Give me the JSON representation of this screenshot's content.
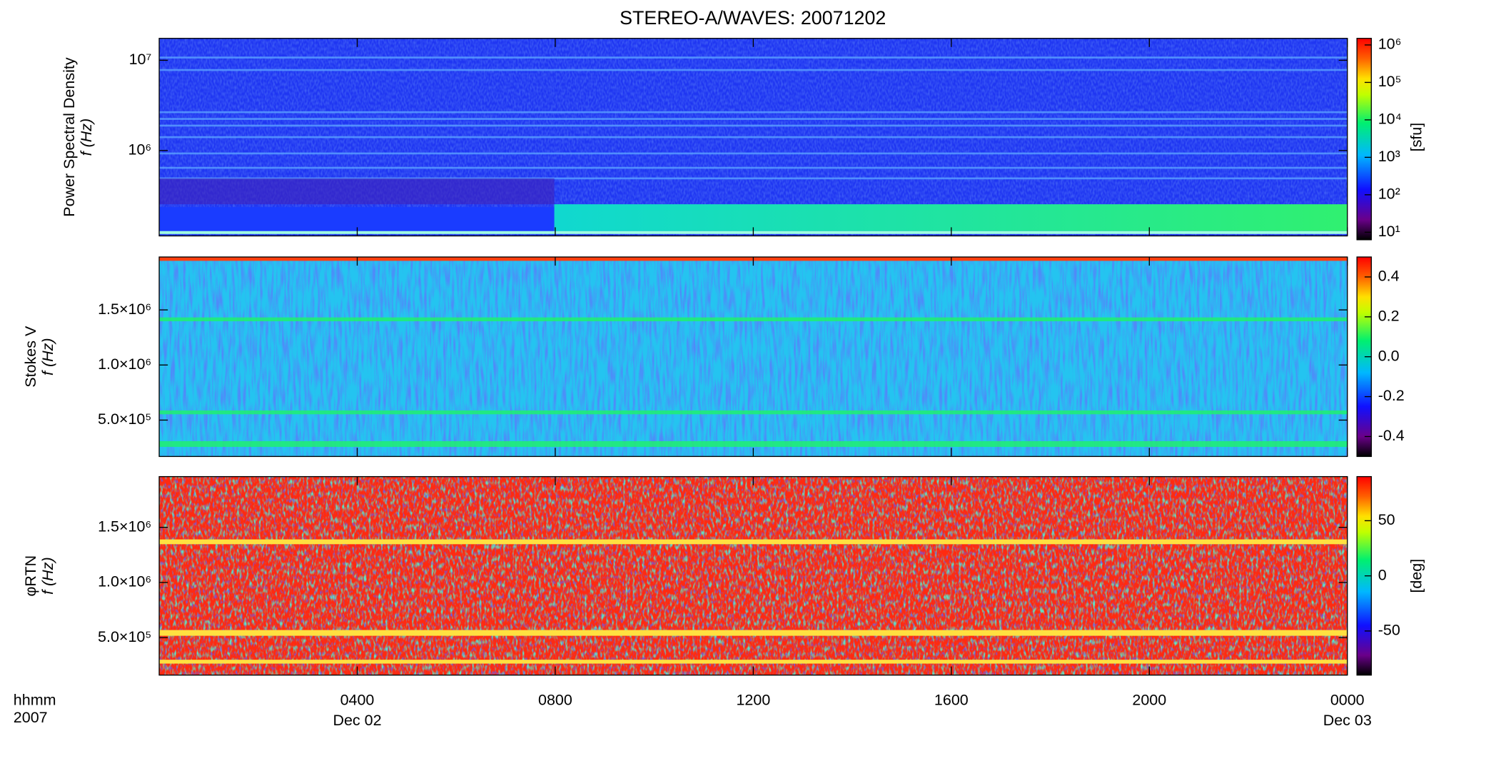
{
  "title": "STEREO-A/WAVES: 20071202",
  "x_axis": {
    "label_lines": [
      "hhmm",
      "2007"
    ],
    "xlim": [
      0,
      24
    ],
    "xticks": [
      {
        "value": 4,
        "label": "0400"
      },
      {
        "value": 8,
        "label": "0800"
      },
      {
        "value": 12,
        "label": "1200"
      },
      {
        "value": 16,
        "label": "1600"
      },
      {
        "value": 20,
        "label": "2000"
      },
      {
        "value": 24,
        "label": "0000"
      }
    ],
    "date_labels": [
      {
        "value": 4,
        "label": "Dec 02"
      },
      {
        "value": 24,
        "label": "Dec 03"
      }
    ]
  },
  "chart_data": [
    {
      "type": "spectrogram",
      "ylabel": "Power Spectral Density",
      "ylabel2": "f (Hz)",
      "yscale": "log",
      "ylim": [
        113000,
        17500000
      ],
      "yticks": [
        {
          "value": 1000000,
          "label": "10⁶"
        },
        {
          "value": 10000000,
          "label": "10⁷"
        }
      ],
      "colorbar": {
        "scale": "log",
        "clim": [
          6.3,
          1500000
        ],
        "label": "[sfu]",
        "ticks": [
          {
            "value": 10,
            "label": "10¹"
          },
          {
            "value": 100,
            "label": "10²"
          },
          {
            "value": 1000,
            "label": "10³"
          },
          {
            "value": 10000,
            "label": "10⁴"
          },
          {
            "value": 100000,
            "label": "10⁵"
          },
          {
            "value": 1000000,
            "label": "10⁶"
          }
        ]
      }
    },
    {
      "type": "spectrogram",
      "ylabel": "Stokes V",
      "ylabel2": "f (Hz)",
      "yscale": "linear",
      "ylim": [
        170000,
        1980000
      ],
      "yticks": [
        {
          "value": 500000,
          "label": "5.0×10⁵"
        },
        {
          "value": 1000000,
          "label": "1.0×10⁶"
        },
        {
          "value": 1500000,
          "label": "1.5×10⁶"
        }
      ],
      "colorbar": {
        "scale": "linear",
        "clim": [
          -0.5,
          0.5
        ],
        "ticks": [
          -0.4,
          -0.2,
          {
            "value": 0,
            "label": "0.0"
          },
          0.2,
          0.4
        ]
      }
    },
    {
      "type": "spectrogram",
      "ylabel": "φRTN",
      "ylabel2": "f (Hz)",
      "yscale": "linear",
      "ylim": [
        160000,
        1960000
      ],
      "yticks": [
        {
          "value": 500000,
          "label": "5.0×10⁵"
        },
        {
          "value": 1000000,
          "label": "1.0×10⁶"
        },
        {
          "value": 1500000,
          "label": "1.5×10⁶"
        }
      ],
      "colorbar": {
        "scale": "linear",
        "clim": [
          -90,
          90
        ],
        "label": "[deg]",
        "ticks": [
          -50,
          0,
          50
        ]
      }
    }
  ]
}
